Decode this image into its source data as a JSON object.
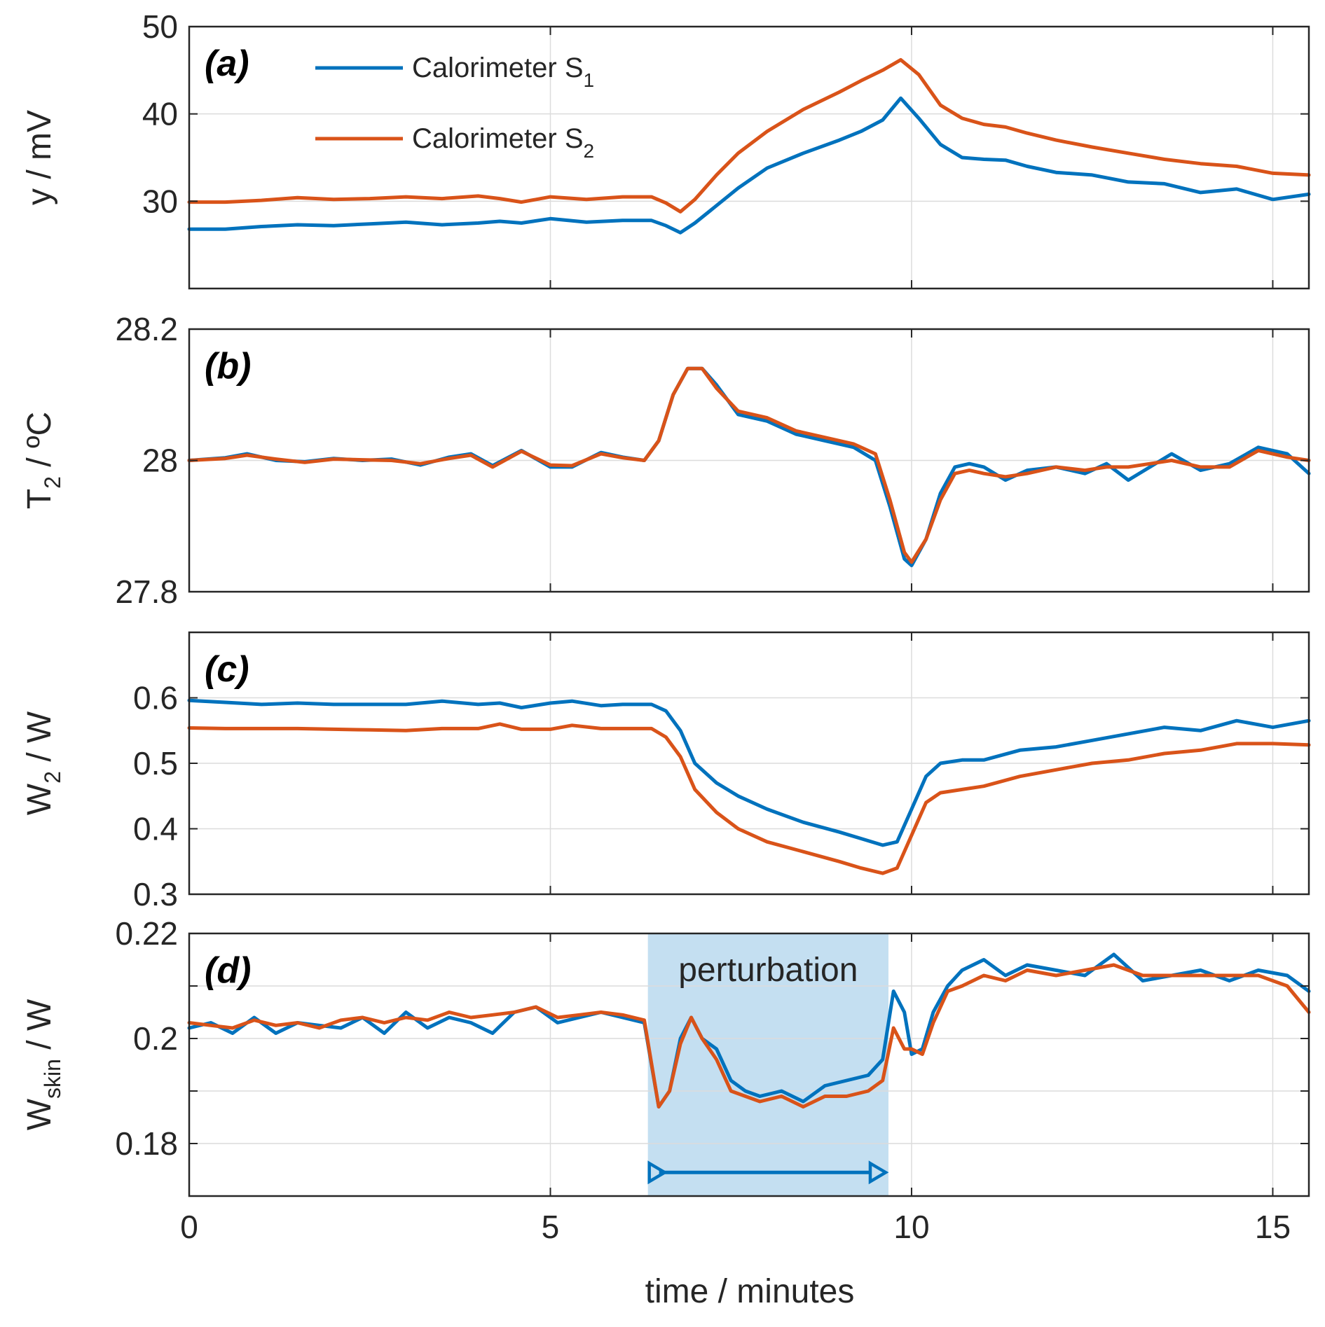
{
  "colors": {
    "s1": "#0072bd",
    "s2": "#d95319",
    "shade": "#9fcbe8"
  },
  "xaxis": {
    "label": "time / minutes",
    "range": [
      0,
      15.5
    ],
    "ticks": [
      0,
      5,
      10,
      15
    ],
    "tick_labels": [
      "0",
      "5",
      "10",
      "15"
    ]
  },
  "legend": {
    "s1": {
      "prefix": "Calorimeter S",
      "sub": "1"
    },
    "s2": {
      "prefix": "Calorimeter S",
      "sub": "2"
    }
  },
  "chart_data": [
    {
      "type": "line",
      "panel_label": "(a)",
      "ylabel": {
        "main": "y / mV",
        "sub": ""
      },
      "ylim": [
        20,
        50
      ],
      "yticks": [
        30,
        40,
        50
      ],
      "ytick_labels": [
        "30",
        "40",
        "50"
      ],
      "series": [
        {
          "name": "Calorimeter S1",
          "x": [
            0,
            0.5,
            1,
            1.5,
            2,
            2.5,
            3,
            3.5,
            4,
            4.3,
            4.6,
            5,
            5.5,
            6,
            6.4,
            6.6,
            6.8,
            7,
            7.3,
            7.6,
            8,
            8.5,
            9,
            9.3,
            9.6,
            9.85,
            10.1,
            10.4,
            10.7,
            11,
            11.3,
            11.6,
            12,
            12.5,
            13,
            13.5,
            14,
            14.5,
            15,
            15.5
          ],
          "y": [
            26.8,
            26.8,
            27.1,
            27.3,
            27.2,
            27.4,
            27.6,
            27.3,
            27.5,
            27.7,
            27.5,
            28,
            27.6,
            27.8,
            27.8,
            27.2,
            26.4,
            27.5,
            29.5,
            31.5,
            33.8,
            35.5,
            37,
            38,
            39.3,
            41.8,
            39.5,
            36.5,
            35,
            34.8,
            34.7,
            34,
            33.3,
            33,
            32.2,
            32,
            31,
            31.4,
            30.2,
            30.8
          ]
        },
        {
          "name": "Calorimeter S2",
          "x": [
            0,
            0.5,
            1,
            1.5,
            2,
            2.5,
            3,
            3.5,
            4,
            4.3,
            4.6,
            5,
            5.5,
            6,
            6.4,
            6.6,
            6.8,
            7,
            7.3,
            7.6,
            8,
            8.5,
            9,
            9.3,
            9.6,
            9.85,
            10.1,
            10.4,
            10.7,
            11,
            11.3,
            11.6,
            12,
            12.5,
            13,
            13.5,
            14,
            14.5,
            15,
            15.5
          ],
          "y": [
            29.9,
            29.9,
            30.1,
            30.4,
            30.2,
            30.3,
            30.5,
            30.3,
            30.6,
            30.3,
            29.9,
            30.5,
            30.2,
            30.5,
            30.5,
            29.8,
            28.8,
            30.2,
            33,
            35.5,
            38,
            40.5,
            42.5,
            43.8,
            45,
            46.2,
            44.5,
            41,
            39.5,
            38.8,
            38.5,
            37.8,
            37,
            36.2,
            35.5,
            34.8,
            34.3,
            34,
            33.2,
            33
          ]
        }
      ]
    },
    {
      "type": "line",
      "panel_label": "(b)",
      "ylabel": {
        "main": "T / ºC",
        "sub": "2"
      },
      "ylim": [
        27.8,
        28.2
      ],
      "yticks": [
        27.8,
        28,
        28.2
      ],
      "ytick_labels": [
        "27.8",
        "28",
        "28.2"
      ],
      "series": [
        {
          "name": "Calorimeter S1",
          "x": [
            0,
            0.5,
            0.8,
            1.2,
            1.6,
            2,
            2.4,
            2.8,
            3.2,
            3.6,
            3.9,
            4.2,
            4.6,
            5,
            5.3,
            5.7,
            6,
            6.3,
            6.5,
            6.7,
            6.9,
            7.1,
            7.3,
            7.6,
            8,
            8.4,
            8.8,
            9.2,
            9.5,
            9.7,
            9.9,
            10,
            10.2,
            10.4,
            10.6,
            10.8,
            11,
            11.3,
            11.6,
            12,
            12.4,
            12.7,
            13,
            13.3,
            13.6,
            14,
            14.4,
            14.8,
            15.2,
            15.5
          ],
          "y": [
            28,
            28.004,
            28.01,
            28,
            27.998,
            28.003,
            28,
            28.002,
            27.993,
            28.005,
            28.01,
            27.992,
            28.015,
            27.99,
            27.99,
            28.012,
            28.005,
            28,
            28.03,
            28.1,
            28.14,
            28.14,
            28.115,
            28.07,
            28.06,
            28.04,
            28.03,
            28.02,
            28,
            27.93,
            27.85,
            27.84,
            27.88,
            27.95,
            27.99,
            27.995,
            27.99,
            27.97,
            27.985,
            27.99,
            27.98,
            27.995,
            27.97,
            27.99,
            28.01,
            27.985,
            27.995,
            28.02,
            28.01,
            27.98
          ]
        },
        {
          "name": "Calorimeter S2",
          "x": [
            0,
            0.5,
            0.8,
            1.2,
            1.6,
            2,
            2.4,
            2.8,
            3.2,
            3.6,
            3.9,
            4.2,
            4.6,
            5,
            5.3,
            5.7,
            6,
            6.3,
            6.5,
            6.7,
            6.9,
            7.1,
            7.3,
            7.6,
            8,
            8.4,
            8.8,
            9.2,
            9.5,
            9.7,
            9.9,
            10,
            10.2,
            10.4,
            10.6,
            10.8,
            11,
            11.3,
            11.6,
            12,
            12.4,
            12.7,
            13,
            13.3,
            13.6,
            14,
            14.4,
            14.8,
            15.2,
            15.5
          ],
          "y": [
            28,
            28.003,
            28.008,
            28.002,
            27.997,
            28.002,
            28.001,
            28,
            27.995,
            28.003,
            28.008,
            27.99,
            28.014,
            27.993,
            27.992,
            28.01,
            28.004,
            28,
            28.03,
            28.1,
            28.14,
            28.14,
            28.11,
            28.075,
            28.065,
            28.045,
            28.035,
            28.025,
            28.01,
            27.94,
            27.86,
            27.845,
            27.88,
            27.94,
            27.98,
            27.985,
            27.98,
            27.975,
            27.98,
            27.99,
            27.985,
            27.99,
            27.99,
            27.995,
            28,
            27.99,
            27.99,
            28.015,
            28.005,
            28
          ]
        }
      ]
    },
    {
      "type": "line",
      "panel_label": "(c)",
      "ylabel": {
        "main": "W / W",
        "sub": "2"
      },
      "ylim": [
        0.3,
        0.7
      ],
      "yticks": [
        0.3,
        0.4,
        0.5,
        0.6
      ],
      "ytick_labels": [
        "0.3",
        "0.4",
        "0.5",
        "0.6"
      ],
      "series": [
        {
          "name": "Calorimeter S1",
          "x": [
            0,
            0.5,
            1,
            1.5,
            2,
            2.5,
            3,
            3.5,
            4,
            4.3,
            4.6,
            5,
            5.3,
            5.7,
            6,
            6.4,
            6.6,
            6.8,
            7,
            7.3,
            7.6,
            8,
            8.5,
            9,
            9.3,
            9.6,
            9.8,
            10,
            10.2,
            10.4,
            10.7,
            11,
            11.5,
            12,
            12.5,
            13,
            13.5,
            14,
            14.5,
            15,
            15.5
          ],
          "y": [
            0.596,
            0.593,
            0.59,
            0.592,
            0.59,
            0.59,
            0.59,
            0.595,
            0.59,
            0.592,
            0.585,
            0.592,
            0.595,
            0.588,
            0.59,
            0.59,
            0.58,
            0.55,
            0.5,
            0.47,
            0.45,
            0.43,
            0.41,
            0.395,
            0.385,
            0.375,
            0.38,
            0.43,
            0.48,
            0.5,
            0.505,
            0.505,
            0.52,
            0.525,
            0.535,
            0.545,
            0.555,
            0.55,
            0.565,
            0.555,
            0.565
          ]
        },
        {
          "name": "Calorimeter S2",
          "x": [
            0,
            0.5,
            1,
            1.5,
            2,
            2.5,
            3,
            3.5,
            4,
            4.3,
            4.6,
            5,
            5.3,
            5.7,
            6,
            6.4,
            6.6,
            6.8,
            7,
            7.3,
            7.6,
            8,
            8.5,
            9,
            9.3,
            9.6,
            9.8,
            10,
            10.2,
            10.4,
            10.7,
            11,
            11.5,
            12,
            12.5,
            13,
            13.5,
            14,
            14.5,
            15,
            15.5
          ],
          "y": [
            0.554,
            0.553,
            0.553,
            0.553,
            0.552,
            0.551,
            0.55,
            0.553,
            0.553,
            0.56,
            0.552,
            0.552,
            0.558,
            0.553,
            0.553,
            0.553,
            0.54,
            0.51,
            0.46,
            0.425,
            0.4,
            0.38,
            0.365,
            0.35,
            0.34,
            0.332,
            0.34,
            0.39,
            0.44,
            0.455,
            0.46,
            0.465,
            0.48,
            0.49,
            0.5,
            0.505,
            0.515,
            0.52,
            0.53,
            0.53,
            0.528
          ]
        }
      ]
    },
    {
      "type": "line",
      "panel_label": "(d)",
      "ylabel": {
        "main": "W / W",
        "sub": "skin"
      },
      "ylim": [
        0.17,
        0.22
      ],
      "yticks": [
        0.18,
        0.2,
        0.22
      ],
      "ytick_labels": [
        "0.18",
        "0.2",
        "0.22"
      ],
      "minor_gridlines": [
        0.19,
        0.21
      ],
      "shaded_region": {
        "x0": 6.35,
        "x1": 9.68,
        "label": "perturbation"
      },
      "arrow": {
        "x0": 6.35,
        "x1": 9.68,
        "y": 0.1745
      },
      "series": [
        {
          "name": "Calorimeter S1",
          "x": [
            0,
            0.3,
            0.6,
            0.9,
            1.2,
            1.5,
            1.8,
            2.1,
            2.4,
            2.7,
            3,
            3.3,
            3.6,
            3.9,
            4.2,
            4.5,
            4.8,
            5.1,
            5.4,
            5.7,
            6,
            6.3,
            6.5,
            6.65,
            6.8,
            6.95,
            7.1,
            7.3,
            7.5,
            7.7,
            7.9,
            8.2,
            8.5,
            8.8,
            9.1,
            9.4,
            9.6,
            9.75,
            9.9,
            10,
            10.15,
            10.3,
            10.5,
            10.7,
            11,
            11.3,
            11.6,
            12,
            12.4,
            12.8,
            13.2,
            13.6,
            14,
            14.4,
            14.8,
            15.2,
            15.5
          ],
          "y": [
            0.202,
            0.203,
            0.201,
            0.204,
            0.201,
            0.203,
            0.2025,
            0.202,
            0.204,
            0.201,
            0.205,
            0.202,
            0.204,
            0.203,
            0.201,
            0.205,
            0.206,
            0.203,
            0.204,
            0.205,
            0.204,
            0.203,
            0.187,
            0.19,
            0.2,
            0.204,
            0.2,
            0.198,
            0.192,
            0.19,
            0.189,
            0.19,
            0.188,
            0.191,
            0.192,
            0.193,
            0.196,
            0.209,
            0.205,
            0.197,
            0.198,
            0.205,
            0.21,
            0.213,
            0.215,
            0.212,
            0.214,
            0.213,
            0.212,
            0.216,
            0.211,
            0.212,
            0.213,
            0.211,
            0.213,
            0.212,
            0.209
          ]
        },
        {
          "name": "Calorimeter S2",
          "x": [
            0,
            0.3,
            0.6,
            0.9,
            1.2,
            1.5,
            1.8,
            2.1,
            2.4,
            2.7,
            3,
            3.3,
            3.6,
            3.9,
            4.2,
            4.5,
            4.8,
            5.1,
            5.4,
            5.7,
            6,
            6.3,
            6.5,
            6.65,
            6.8,
            6.95,
            7.1,
            7.3,
            7.5,
            7.7,
            7.9,
            8.2,
            8.5,
            8.8,
            9.1,
            9.4,
            9.6,
            9.75,
            9.9,
            10,
            10.15,
            10.3,
            10.5,
            10.7,
            11,
            11.3,
            11.6,
            12,
            12.4,
            12.8,
            13.2,
            13.6,
            14,
            14.4,
            14.8,
            15.2,
            15.5
          ],
          "y": [
            0.203,
            0.2025,
            0.202,
            0.2035,
            0.2025,
            0.203,
            0.202,
            0.2035,
            0.204,
            0.203,
            0.204,
            0.2035,
            0.205,
            0.204,
            0.2045,
            0.205,
            0.206,
            0.204,
            0.2045,
            0.205,
            0.2045,
            0.2035,
            0.187,
            0.19,
            0.199,
            0.204,
            0.2,
            0.196,
            0.19,
            0.189,
            0.188,
            0.189,
            0.187,
            0.189,
            0.189,
            0.19,
            0.192,
            0.202,
            0.198,
            0.198,
            0.197,
            0.203,
            0.209,
            0.21,
            0.212,
            0.211,
            0.213,
            0.212,
            0.213,
            0.214,
            0.212,
            0.212,
            0.212,
            0.212,
            0.212,
            0.21,
            0.205
          ]
        }
      ]
    }
  ]
}
